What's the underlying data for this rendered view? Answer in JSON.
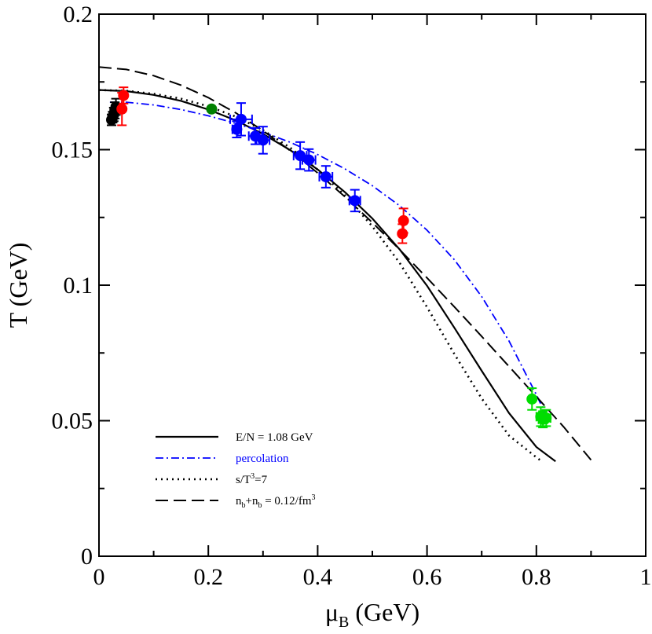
{
  "chart_data": {
    "type": "scatter",
    "title": "",
    "xlabel": {
      "main": "μ",
      "sub": "B",
      "unit": " (GeV)"
    },
    "ylabel": "T (GeV)",
    "xlim": [
      0,
      1
    ],
    "ylim": [
      0,
      0.2
    ],
    "xticks": [
      0,
      0.2,
      0.4,
      0.6,
      0.8,
      1
    ],
    "xtick_labels": [
      "0",
      "0.2",
      "0.4",
      "0.6",
      "0.8",
      "1"
    ],
    "yticks": [
      0,
      0.05,
      0.1,
      0.15,
      0.2
    ],
    "ytick_labels": [
      "0",
      "0.05",
      "0.1",
      "0.15",
      "0.2"
    ],
    "grid": false,
    "legend_position": "bottom-left",
    "colors": {
      "black": "#000000",
      "blue": "#0000ff",
      "red": "#ff0000",
      "green": "#008000",
      "lime": "#00dd00"
    },
    "curves": [
      {
        "name": "E/N = 1.08 GeV",
        "legend": [
          {
            "t": "E/N = 1.08 GeV"
          }
        ],
        "color": "#000000",
        "dash": "",
        "width": 2.2,
        "x": [
          0.0,
          0.05,
          0.1,
          0.15,
          0.2,
          0.25,
          0.3,
          0.35,
          0.4,
          0.45,
          0.5,
          0.55,
          0.6,
          0.65,
          0.7,
          0.75,
          0.8,
          0.835
        ],
        "y": [
          0.172,
          0.1716,
          0.1702,
          0.168,
          0.1648,
          0.1608,
          0.1558,
          0.1498,
          0.1427,
          0.1343,
          0.1246,
          0.1132,
          0.0998,
          0.0843,
          0.0684,
          0.0528,
          0.0403,
          0.035
        ]
      },
      {
        "name": "percolation",
        "legend": [
          {
            "t": "percolation"
          }
        ],
        "color": "#0000ff",
        "dash": "10 4 2 4",
        "width": 1.8,
        "x": [
          0.02,
          0.05,
          0.1,
          0.15,
          0.2,
          0.25,
          0.3,
          0.35,
          0.4,
          0.45,
          0.5,
          0.55,
          0.6,
          0.65,
          0.7,
          0.75,
          0.8,
          0.82
        ],
        "y": [
          0.1675,
          0.1675,
          0.1665,
          0.1648,
          0.1625,
          0.1597,
          0.1565,
          0.1527,
          0.1482,
          0.1429,
          0.1367,
          0.1293,
          0.1203,
          0.1094,
          0.0958,
          0.0794,
          0.0596,
          0.051
        ]
      },
      {
        "name": "s/T3=7",
        "legend": [
          {
            "t": "s/T"
          },
          {
            "t": "3",
            "sup": true
          },
          {
            "t": "=7"
          }
        ],
        "color": "#000000",
        "dash": "2 5",
        "width": 2.6,
        "x": [
          0.0,
          0.05,
          0.1,
          0.15,
          0.2,
          0.25,
          0.3,
          0.35,
          0.4,
          0.45,
          0.5,
          0.55,
          0.6,
          0.65,
          0.7,
          0.75,
          0.8,
          0.81
        ],
        "y": [
          0.172,
          0.1717,
          0.1706,
          0.1688,
          0.166,
          0.1622,
          0.1572,
          0.1507,
          0.1426,
          0.1331,
          0.1217,
          0.1082,
          0.0919,
          0.0746,
          0.0582,
          0.0445,
          0.0365,
          0.035
        ]
      },
      {
        "name": "nb+nb = 0.12/fm3",
        "legend": [
          {
            "t": "n"
          },
          {
            "t": "b",
            "sub": true
          },
          {
            "t": "+n"
          },
          {
            "t": "b",
            "sub": true
          },
          {
            "t": " = 0.12/fm"
          },
          {
            "t": "3",
            "sup": true
          }
        ],
        "color": "#000000",
        "dash": "16 7",
        "width": 2.0,
        "x": [
          0.0,
          0.05,
          0.1,
          0.15,
          0.2,
          0.25,
          0.3,
          0.35,
          0.4,
          0.45,
          0.5,
          0.55,
          0.6,
          0.65,
          0.7,
          0.75,
          0.8,
          0.85,
          0.9
        ],
        "y": [
          0.1805,
          0.1796,
          0.1773,
          0.1738,
          0.1692,
          0.1636,
          0.157,
          0.1496,
          0.1414,
          0.1326,
          0.1231,
          0.1131,
          0.1027,
          0.092,
          0.0811,
          0.07,
          0.0589,
          0.0477,
          0.0355
        ]
      }
    ],
    "points": [
      {
        "color": "#000000",
        "x": 0.023,
        "y": 0.161,
        "yerr": 0.002
      },
      {
        "color": "#000000",
        "x": 0.025,
        "y": 0.162,
        "yerr": 0.002
      },
      {
        "color": "#000000",
        "x": 0.027,
        "y": 0.163,
        "yerr": 0.0025
      },
      {
        "color": "#000000",
        "x": 0.029,
        "y": 0.1645,
        "yerr": 0.003
      },
      {
        "color": "#000000",
        "x": 0.031,
        "y": 0.1658,
        "yerr": 0.003
      },
      {
        "color": "#ff0000",
        "x": 0.045,
        "y": 0.17,
        "yerr": 0.003
      },
      {
        "color": "#ff0000",
        "x": 0.042,
        "y": 0.165,
        "yerr": 0.006
      },
      {
        "color": "#008000",
        "x": 0.206,
        "y": 0.165
      },
      {
        "color": "#0000ff",
        "x": 0.26,
        "y": 0.1612,
        "xerr": 0.02,
        "yerr": 0.006
      },
      {
        "color": "#0000ff",
        "x": 0.252,
        "y": 0.1575,
        "xerr": 0.008,
        "yerr": 0.003
      },
      {
        "color": "#0000ff",
        "x": 0.286,
        "y": 0.155,
        "xerr": 0.012,
        "yerr": 0.003
      },
      {
        "color": "#0000ff",
        "x": 0.3,
        "y": 0.1535,
        "xerr": 0.012,
        "yerr": 0.005
      },
      {
        "color": "#0000ff",
        "x": 0.368,
        "y": 0.1478,
        "xerr": 0.012,
        "yerr": 0.005
      },
      {
        "color": "#0000ff",
        "x": 0.384,
        "y": 0.1462,
        "xerr": 0.012,
        "yerr": 0.004
      },
      {
        "color": "#0000ff",
        "x": 0.415,
        "y": 0.14,
        "xerr": 0.012,
        "yerr": 0.004
      },
      {
        "color": "#0000ff",
        "x": 0.468,
        "y": 0.1312,
        "xerr": 0.01,
        "yerr": 0.004
      },
      {
        "color": "#ff0000",
        "x": 0.557,
        "y": 0.1238,
        "yerr": 0.0045
      },
      {
        "color": "#ff0000",
        "x": 0.555,
        "y": 0.119,
        "yerr": 0.0035
      },
      {
        "color": "#00dd00",
        "x": 0.792,
        "y": 0.058,
        "yerr": 0.004
      },
      {
        "color": "#00dd00",
        "x": 0.808,
        "y": 0.0515,
        "xerr": 0.008,
        "yerr": 0.0035
      },
      {
        "color": "#00dd00",
        "x": 0.812,
        "y": 0.0505,
        "xerr": 0.008,
        "yerr": 0.003
      },
      {
        "color": "#00dd00",
        "x": 0.818,
        "y": 0.051,
        "xerr": 0.008,
        "yerr": 0.003
      }
    ]
  }
}
